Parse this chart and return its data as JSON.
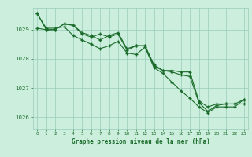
{
  "title": "Graphe pression niveau de la mer (hPa)",
  "background_color": "#cceedd",
  "grid_color": "#99ccbb",
  "line_color": "#1a6b2a",
  "marker_color": "#1a6b2a",
  "xlim": [
    -0.5,
    23.5
  ],
  "ylim": [
    1025.6,
    1029.75
  ],
  "yticks": [
    1026,
    1027,
    1028,
    1029
  ],
  "xticks": [
    0,
    1,
    2,
    3,
    4,
    5,
    6,
    7,
    8,
    9,
    10,
    11,
    12,
    13,
    14,
    15,
    16,
    17,
    18,
    19,
    20,
    21,
    22,
    23
  ],
  "series": [
    [
      1029.55,
      1029.0,
      1029.0,
      1029.2,
      1029.15,
      1028.85,
      1028.75,
      1028.85,
      1028.75,
      1028.85,
      1028.3,
      1028.45,
      1028.45,
      1027.75,
      1027.6,
      1027.6,
      1027.55,
      1027.55,
      1026.55,
      1026.35,
      1026.45,
      1026.45,
      1026.45,
      1026.6
    ],
    [
      1029.05,
      1029.0,
      1029.0,
      1029.2,
      1029.15,
      1028.9,
      1028.8,
      1028.65,
      1028.8,
      1028.9,
      1028.35,
      1028.45,
      1028.45,
      1027.8,
      1027.6,
      1027.55,
      1027.45,
      1027.4,
      1026.5,
      1026.2,
      1026.4,
      1026.45,
      1026.45,
      1026.45
    ],
    [
      1029.55,
      1029.05,
      1029.05,
      1029.1,
      1028.8,
      1028.65,
      1028.5,
      1028.35,
      1028.45,
      1028.6,
      1028.2,
      1028.15,
      1028.4,
      1027.7,
      1027.5,
      1027.2,
      1026.9,
      1026.65,
      1026.35,
      1026.15,
      1026.35,
      1026.35,
      1026.35,
      1026.6
    ]
  ]
}
